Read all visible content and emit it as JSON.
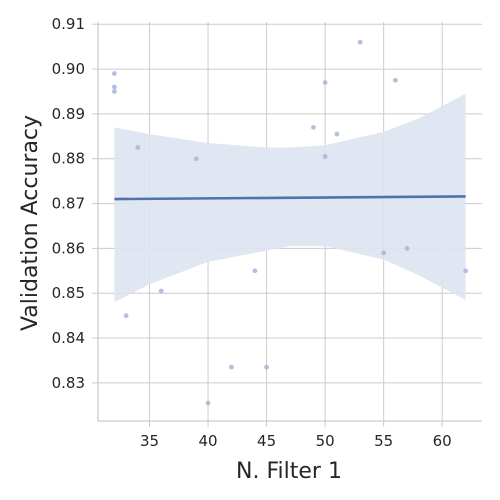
{
  "chart_data": {
    "type": "scatter",
    "xlabel": "N. Filter 1",
    "ylabel": "Validation Accuracy",
    "xlim": [
      30.6,
      63.4
    ],
    "ylim": [
      0.8215,
      0.9105
    ],
    "x_ticks": [
      35,
      40,
      45,
      50,
      55,
      60
    ],
    "y_ticks": [
      0.83,
      0.84,
      0.85,
      0.86,
      0.87,
      0.88,
      0.89,
      0.9,
      0.91
    ],
    "x_tick_labels": [
      "35",
      "40",
      "45",
      "50",
      "55",
      "60"
    ],
    "y_tick_labels": [
      "0.83",
      "0.84",
      "0.85",
      "0.86",
      "0.87",
      "0.88",
      "0.89",
      "0.90",
      "0.91"
    ],
    "grid": true,
    "points": [
      {
        "x": 32,
        "y": 0.899
      },
      {
        "x": 32,
        "y": 0.896
      },
      {
        "x": 32,
        "y": 0.895
      },
      {
        "x": 33,
        "y": 0.845
      },
      {
        "x": 34,
        "y": 0.8825
      },
      {
        "x": 36,
        "y": 0.8505
      },
      {
        "x": 39,
        "y": 0.88
      },
      {
        "x": 40,
        "y": 0.8255
      },
      {
        "x": 42,
        "y": 0.8335
      },
      {
        "x": 44,
        "y": 0.855
      },
      {
        "x": 45,
        "y": 0.8335
      },
      {
        "x": 49,
        "y": 0.887
      },
      {
        "x": 50,
        "y": 0.897
      },
      {
        "x": 50,
        "y": 0.8805
      },
      {
        "x": 51,
        "y": 0.8855
      },
      {
        "x": 53,
        "y": 0.906
      },
      {
        "x": 55,
        "y": 0.859
      },
      {
        "x": 56,
        "y": 0.8975
      },
      {
        "x": 57,
        "y": 0.86
      },
      {
        "x": 62,
        "y": 0.855
      }
    ],
    "regression_line": [
      {
        "x": 32,
        "y": 0.871
      },
      {
        "x": 62,
        "y": 0.8716
      }
    ],
    "confidence_band": [
      {
        "x": 32,
        "lower": 0.848,
        "upper": 0.887
      },
      {
        "x": 35,
        "lower": 0.852,
        "upper": 0.8855
      },
      {
        "x": 40,
        "lower": 0.857,
        "upper": 0.8835
      },
      {
        "x": 45,
        "lower": 0.8595,
        "upper": 0.8825
      },
      {
        "x": 47,
        "lower": 0.8605,
        "upper": 0.8825
      },
      {
        "x": 50,
        "lower": 0.8605,
        "upper": 0.883
      },
      {
        "x": 55,
        "lower": 0.8575,
        "upper": 0.886
      },
      {
        "x": 58,
        "lower": 0.854,
        "upper": 0.889
      },
      {
        "x": 62,
        "lower": 0.8485,
        "upper": 0.8945
      }
    ],
    "colors": {
      "points": "#aab4da",
      "line": "#4c72b0",
      "band": "#dde4f1",
      "grid": "#cccccc",
      "axis": "#cccccc"
    }
  }
}
